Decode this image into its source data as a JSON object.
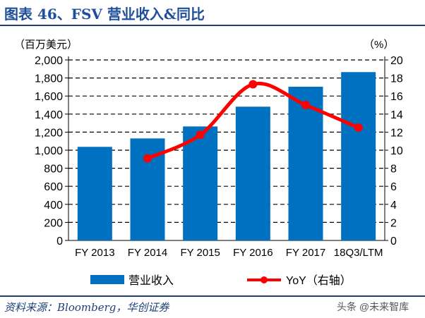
{
  "title": "图表 46、FSV 营业收入&同比",
  "source": "资料来源：Bloomberg，华创证券",
  "watermark": "头条 @未来智库",
  "chart_data": {
    "type": "bar+line",
    "categories": [
      "FY 2013",
      "FY 2014",
      "FY 2015",
      "FY 2016",
      "FY 2017",
      "18Q3/LTM"
    ],
    "series": [
      {
        "name": "营业收入",
        "type": "bar",
        "axis": "left",
        "color": "#0070c0",
        "values": [
          1037,
          1130,
          1263,
          1482,
          1703,
          1865
        ]
      },
      {
        "name": "YoY（右轴）",
        "type": "line",
        "axis": "right",
        "color": "#ff0000",
        "values": [
          null,
          9.1,
          11.7,
          17.3,
          15.0,
          12.5
        ]
      }
    ],
    "ylabel_left": "（百万美元）",
    "ylabel_right": "（%）",
    "ylim_left": [
      0,
      2000
    ],
    "ylim_right": [
      0,
      20
    ],
    "yticks_left": [
      "0",
      "200",
      "400",
      "600",
      "800",
      "1,000",
      "1,200",
      "1,400",
      "1,600",
      "1,800",
      "2,000"
    ],
    "yticks_right": [
      "0",
      "2",
      "4",
      "6",
      "8",
      "10",
      "12",
      "14",
      "16",
      "18",
      "20"
    ],
    "grid": true,
    "legend": "bottom"
  }
}
